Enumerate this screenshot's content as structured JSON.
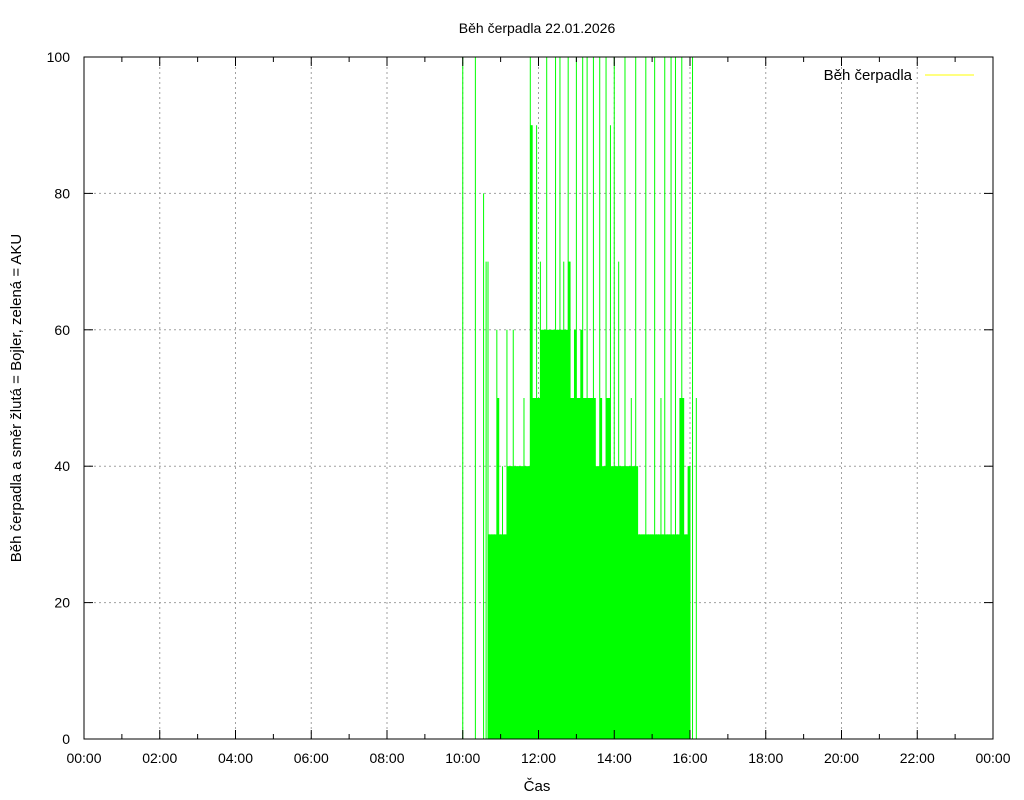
{
  "colors": {
    "series": "#00ff00",
    "legend_line": "#ffff00",
    "grid": "#a0a0a0",
    "axis": "#000000",
    "background": "#ffffff"
  },
  "chart_data": {
    "type": "bar",
    "title": "Běh čerpadla 22.01.2026",
    "xlabel": "Čas",
    "ylabel": "Běh čerpadla a směr žlutá = Bojler, zelená = AKU",
    "xlim": [
      "00:00",
      "24:00"
    ],
    "ylim": [
      0,
      100
    ],
    "grid": true,
    "legend": {
      "position": "top-right",
      "entries": [
        "Běh čerpadla"
      ]
    },
    "x_ticks": [
      "00:00",
      "02:00",
      "04:00",
      "06:00",
      "08:00",
      "10:00",
      "12:00",
      "14:00",
      "16:00",
      "18:00",
      "20:00",
      "22:00",
      "00:00"
    ],
    "y_ticks": [
      "0",
      "20",
      "40",
      "60",
      "80",
      "100"
    ],
    "series": [
      {
        "name": "Běh čerpadla",
        "style": "impulses",
        "points": [
          [
            "10:00",
            100
          ],
          [
            "10:20",
            100
          ],
          [
            "10:33",
            80
          ],
          [
            "10:37",
            70
          ],
          [
            "10:40",
            70
          ],
          [
            "10:42",
            30
          ],
          [
            "10:46",
            30
          ],
          [
            "10:50",
            30
          ],
          [
            "10:54",
            60
          ],
          [
            "10:57",
            50
          ],
          [
            "11:00",
            30
          ],
          [
            "11:03",
            40
          ],
          [
            "11:07",
            30
          ],
          [
            "11:10",
            60
          ],
          [
            "11:14",
            40
          ],
          [
            "11:17",
            40
          ],
          [
            "11:20",
            60
          ],
          [
            "11:24",
            40
          ],
          [
            "11:27",
            40
          ],
          [
            "11:30",
            40
          ],
          [
            "11:34",
            40
          ],
          [
            "11:37",
            50
          ],
          [
            "11:40",
            40
          ],
          [
            "11:44",
            40
          ],
          [
            "11:47",
            100
          ],
          [
            "11:50",
            90
          ],
          [
            "11:54",
            50
          ],
          [
            "11:57",
            90
          ],
          [
            "12:00",
            50
          ],
          [
            "12:03",
            70
          ],
          [
            "12:07",
            60
          ],
          [
            "12:10",
            60
          ],
          [
            "12:13",
            100
          ],
          [
            "12:17",
            60
          ],
          [
            "12:20",
            60
          ],
          [
            "12:24",
            60
          ],
          [
            "12:27",
            100
          ],
          [
            "12:30",
            60
          ],
          [
            "12:34",
            100
          ],
          [
            "12:37",
            60
          ],
          [
            "12:40",
            70
          ],
          [
            "12:43",
            60
          ],
          [
            "12:47",
            100
          ],
          [
            "12:50",
            70
          ],
          [
            "12:53",
            50
          ],
          [
            "12:57",
            60
          ],
          [
            "13:00",
            100
          ],
          [
            "13:04",
            50
          ],
          [
            "13:07",
            60
          ],
          [
            "13:10",
            100
          ],
          [
            "13:14",
            50
          ],
          [
            "13:17",
            100
          ],
          [
            "13:20",
            50
          ],
          [
            "13:24",
            50
          ],
          [
            "13:27",
            100
          ],
          [
            "13:30",
            50
          ],
          [
            "13:34",
            40
          ],
          [
            "13:37",
            100
          ],
          [
            "13:40",
            50
          ],
          [
            "13:44",
            40
          ],
          [
            "13:47",
            100
          ],
          [
            "13:50",
            50
          ],
          [
            "13:54",
            90
          ],
          [
            "13:57",
            40
          ],
          [
            "14:00",
            100
          ],
          [
            "14:04",
            40
          ],
          [
            "14:07",
            70
          ],
          [
            "14:10",
            40
          ],
          [
            "14:14",
            40
          ],
          [
            "14:17",
            100
          ],
          [
            "14:20",
            40
          ],
          [
            "14:24",
            40
          ],
          [
            "14:27",
            50
          ],
          [
            "14:30",
            40
          ],
          [
            "14:34",
            100
          ],
          [
            "14:37",
            40
          ],
          [
            "14:40",
            30
          ],
          [
            "14:44",
            30
          ],
          [
            "14:47",
            30
          ],
          [
            "14:50",
            100
          ],
          [
            "14:54",
            30
          ],
          [
            "14:57",
            30
          ],
          [
            "15:00",
            30
          ],
          [
            "15:04",
            100
          ],
          [
            "15:07",
            30
          ],
          [
            "15:10",
            30
          ],
          [
            "15:14",
            50
          ],
          [
            "15:17",
            30
          ],
          [
            "15:20",
            100
          ],
          [
            "15:24",
            30
          ],
          [
            "15:27",
            30
          ],
          [
            "15:30",
            100
          ],
          [
            "15:34",
            30
          ],
          [
            "15:37",
            100
          ],
          [
            "15:40",
            30
          ],
          [
            "15:44",
            50
          ],
          [
            "15:47",
            100
          ],
          [
            "15:50",
            50
          ],
          [
            "15:54",
            30
          ],
          [
            "15:57",
            40
          ],
          [
            "16:00",
            40
          ],
          [
            "16:04",
            100
          ],
          [
            "16:10",
            50
          ]
        ]
      }
    ]
  }
}
